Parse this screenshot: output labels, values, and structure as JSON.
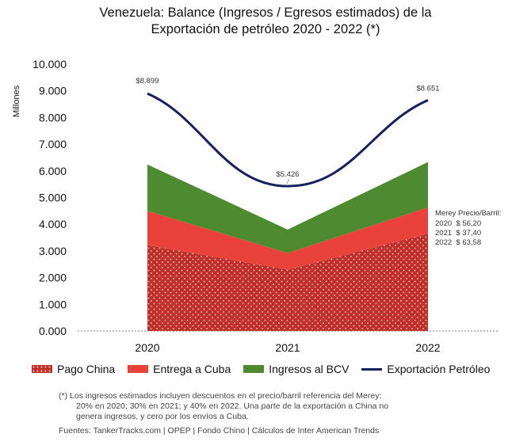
{
  "chart_data": {
    "type": "area",
    "title_line1": "Venezuela: Balance (Ingresos / Egresos estimados) de la",
    "title_line2": "Exportación de petróleo 2020 - 2022 (*)",
    "ylabel": "Millones",
    "ylim": [
      0,
      10000
    ],
    "y_ticks": [
      "0.000",
      "1.000",
      "2.000",
      "3.000",
      "4.000",
      "5.000",
      "6.000",
      "7.000",
      "8.000",
      "9.000",
      "10.000"
    ],
    "y_tick_values": [
      0,
      1000,
      2000,
      3000,
      4000,
      5000,
      6000,
      7000,
      8000,
      9000,
      10000
    ],
    "categories": [
      "2020",
      "2021",
      "2022"
    ],
    "stacked_series": [
      {
        "name": "Pago China",
        "values": [
          3220,
          2300,
          3650
        ],
        "color": "#c0302b",
        "pattern": "dots"
      },
      {
        "name": "Entrega a Cuba",
        "values": [
          1280,
          620,
          980
        ],
        "color": "#e8423a"
      },
      {
        "name": "Ingresos al BCV",
        "values": [
          1740,
          880,
          1700
        ],
        "color": "#4e8a2f"
      }
    ],
    "line_series": {
      "name": "Exportación Petróleo",
      "values": [
        8899,
        5426,
        8651
      ],
      "labels": [
        "$8.899",
        "$5.426",
        "$8.651"
      ],
      "color": "#15205e"
    },
    "annotation": {
      "title": "Merey Precio/Barril:",
      "lines": [
        "2020  $ 56,20",
        "2021  $ 37,40",
        "2022  $ 63,58"
      ]
    }
  },
  "legend": {
    "pago_china": "Pago China",
    "entrega_cuba": "Entrega a Cuba",
    "ingresos_bcv": "Ingresos al BCV",
    "exportacion": "Exportación Petróleo"
  },
  "footnote": {
    "marker": "(*)",
    "line1": "Los ingresos estimados incluyen descuentos en el precio/barril referencia del Merey:",
    "line2": "20% en 2020; 30% en 2021; y 40% en 2022. Una parte de la exportación a China no",
    "line3": "genera ingresos, y cero por los envíos a Cuba."
  },
  "sources": "Fuentes: TankerTracks.com | OPEP | Fondo Chino | Cálculos de Inter American Trends"
}
